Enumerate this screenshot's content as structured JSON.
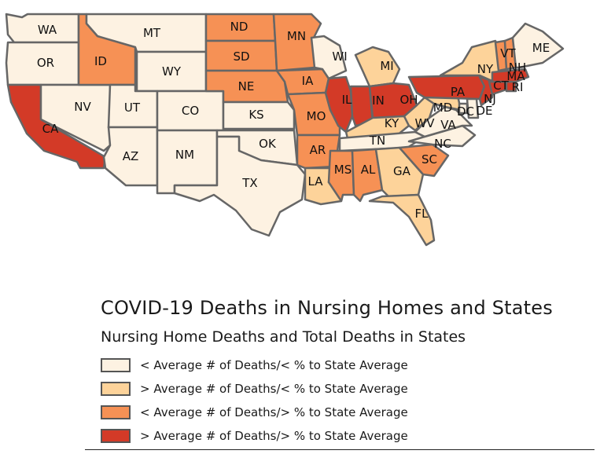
{
  "title": "COVID-19  Deaths in Nursing Homes and States",
  "subtitle": "Nursing Home  Deaths and  Total Deaths in States",
  "colors": {
    "cat1": "#fdf2e2",
    "cat2": "#fdd39a",
    "cat3": "#f69155",
    "cat4": "#d33a27",
    "border": "#666666"
  },
  "legend": [
    {
      "label": "< Average # of  Deaths/< % to State Average",
      "category": 1
    },
    {
      "label": "> Average # of Deaths/< % to State Average",
      "category": 2
    },
    {
      "label": "< Average # of Deaths/> % to State Average",
      "category": 3
    },
    {
      "label": "> Average # of Deaths/> % to State Average",
      "category": 4
    }
  ],
  "states": [
    {
      "abbr": "WA",
      "category": 1
    },
    {
      "abbr": "OR",
      "category": 1
    },
    {
      "abbr": "CA",
      "category": 4
    },
    {
      "abbr": "NV",
      "category": 1
    },
    {
      "abbr": "ID",
      "category": 3
    },
    {
      "abbr": "MT",
      "category": 1
    },
    {
      "abbr": "WY",
      "category": 1
    },
    {
      "abbr": "UT",
      "category": 1
    },
    {
      "abbr": "AZ",
      "category": 1
    },
    {
      "abbr": "CO",
      "category": 1
    },
    {
      "abbr": "NM",
      "category": 1
    },
    {
      "abbr": "ND",
      "category": 3
    },
    {
      "abbr": "SD",
      "category": 3
    },
    {
      "abbr": "NE",
      "category": 3
    },
    {
      "abbr": "KS",
      "category": 1
    },
    {
      "abbr": "OK",
      "category": 1
    },
    {
      "abbr": "TX",
      "category": 1
    },
    {
      "abbr": "MN",
      "category": 3
    },
    {
      "abbr": "IA",
      "category": 3
    },
    {
      "abbr": "MO",
      "category": 3
    },
    {
      "abbr": "AR",
      "category": 3
    },
    {
      "abbr": "LA",
      "category": 2
    },
    {
      "abbr": "WI",
      "category": 1
    },
    {
      "abbr": "IL",
      "category": 4
    },
    {
      "abbr": "MI",
      "category": 2
    },
    {
      "abbr": "IN",
      "category": 4
    },
    {
      "abbr": "OH",
      "category": 4
    },
    {
      "abbr": "KY",
      "category": 2
    },
    {
      "abbr": "TN",
      "category": 1
    },
    {
      "abbr": "MS",
      "category": 3
    },
    {
      "abbr": "AL",
      "category": 3
    },
    {
      "abbr": "GA",
      "category": 2
    },
    {
      "abbr": "FL",
      "category": 2
    },
    {
      "abbr": "SC",
      "category": 3
    },
    {
      "abbr": "NC",
      "category": 1
    },
    {
      "abbr": "VA",
      "category": 1
    },
    {
      "abbr": "WV",
      "category": 2
    },
    {
      "abbr": "MD",
      "category": 2
    },
    {
      "abbr": "DC",
      "category": 1
    },
    {
      "abbr": "DE",
      "category": 1
    },
    {
      "abbr": "PA",
      "category": 4
    },
    {
      "abbr": "NJ",
      "category": 4
    },
    {
      "abbr": "NY",
      "category": 2
    },
    {
      "abbr": "CT",
      "category": 4
    },
    {
      "abbr": "RI",
      "category": 4
    },
    {
      "abbr": "MA",
      "category": 4
    },
    {
      "abbr": "VT",
      "category": 3
    },
    {
      "abbr": "NH",
      "category": 3
    },
    {
      "abbr": "ME",
      "category": 1
    }
  ]
}
